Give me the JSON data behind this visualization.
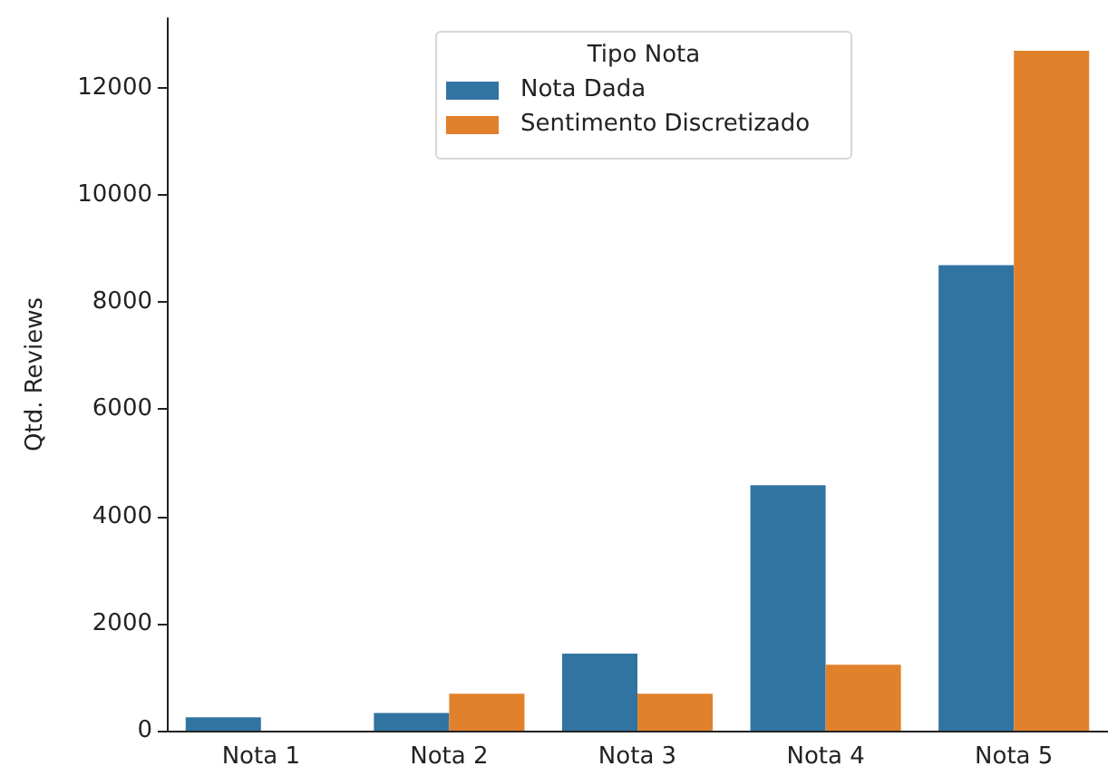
{
  "chart_data": {
    "type": "bar",
    "ylabel": "Qtd. Reviews",
    "legend_title": "Tipo Nota",
    "categories": [
      "Nota 1",
      "Nota 2",
      "Nota 3",
      "Nota 4",
      "Nota 5"
    ],
    "series": [
      {
        "name": "Nota Dada",
        "color": "#3274a1",
        "values": [
          250,
          330,
          1440,
          4580,
          8690
        ]
      },
      {
        "name": "Sentimento Discretizado",
        "color": "#e1812c",
        "values": [
          0,
          690,
          690,
          1230,
          12690
        ]
      }
    ],
    "ylim": [
      0,
      13300
    ],
    "yticks": [
      0,
      2000,
      4000,
      6000,
      8000,
      10000,
      12000
    ],
    "grid": false,
    "legend": "top"
  }
}
